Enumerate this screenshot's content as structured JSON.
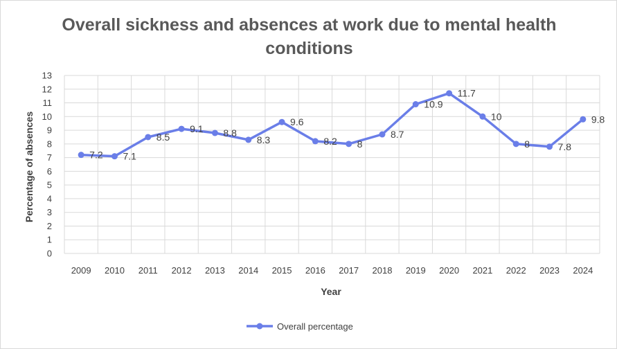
{
  "chart_data": {
    "type": "line",
    "title": "Overall sickness and absences at work due to mental health conditions",
    "xlabel": "Year",
    "ylabel": "Percentage of absences",
    "categories": [
      "2009",
      "2010",
      "2011",
      "2012",
      "2013",
      "2014",
      "2015",
      "2016",
      "2017",
      "2018",
      "2019",
      "2020",
      "2021",
      "2022",
      "2023",
      "2024"
    ],
    "series": [
      {
        "name": "Overall percentage",
        "color": "#6a7ee8",
        "values": [
          7.2,
          7.1,
          8.5,
          9.1,
          8.8,
          8.3,
          9.6,
          8.2,
          8,
          8.7,
          10.9,
          11.7,
          10,
          8,
          7.8,
          9.8
        ]
      }
    ],
    "ylim": [
      0,
      13
    ],
    "yticks": [
      0,
      1,
      2,
      3,
      4,
      5,
      6,
      7,
      8,
      9,
      10,
      11,
      12,
      13
    ],
    "grid": true,
    "legend_position": "bottom"
  }
}
